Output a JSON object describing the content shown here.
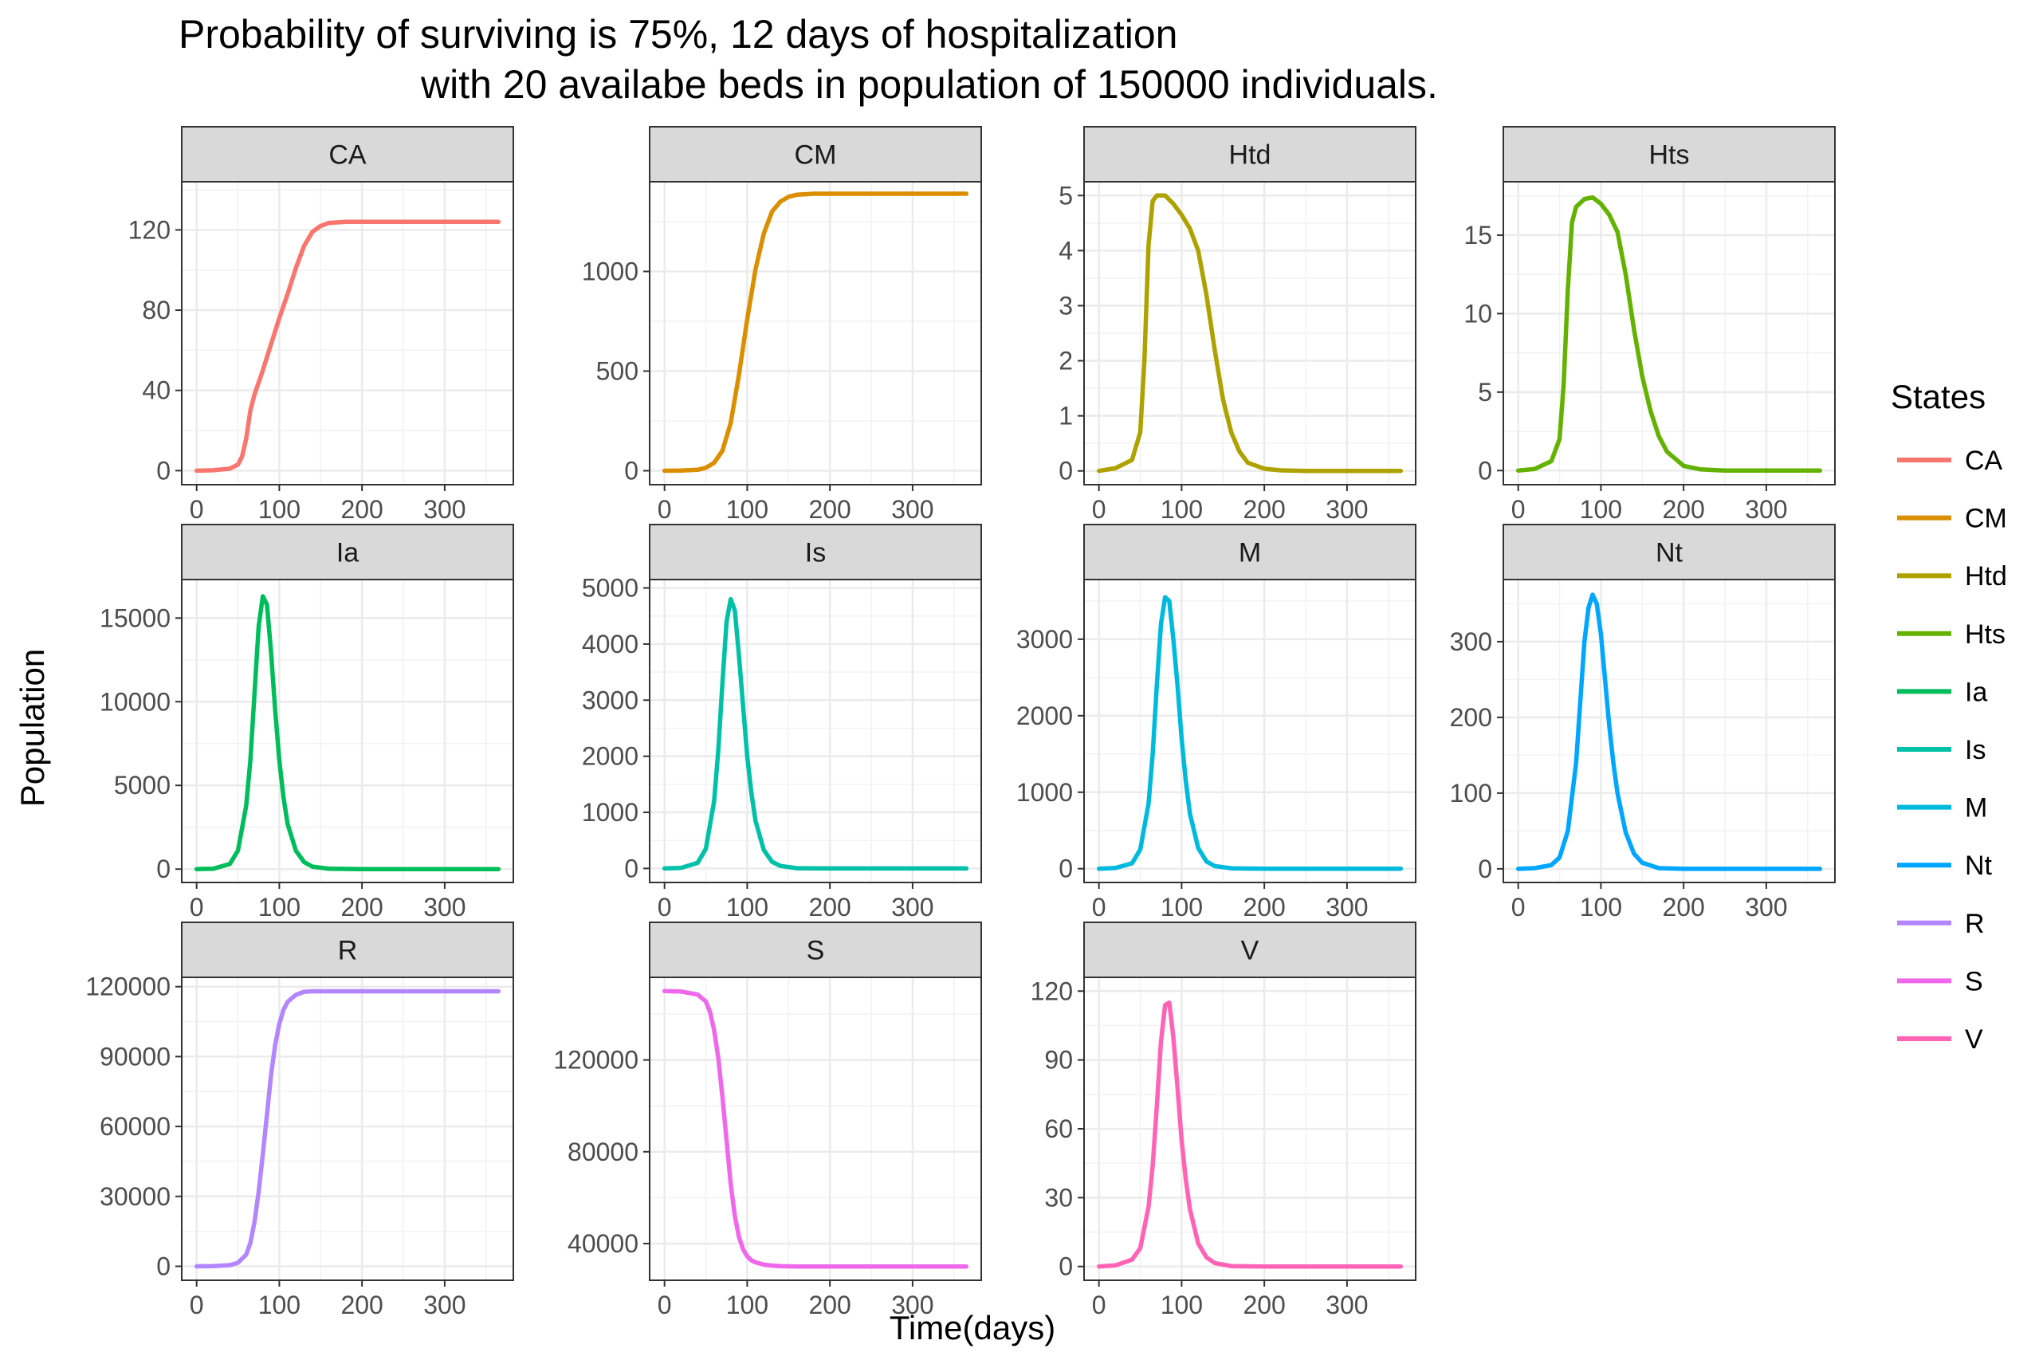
{
  "chart_data": {
    "type": "line",
    "title": [
      "Probability of surviving is 75%, 12 days of hospitalization",
      "with 20 availabe beds in population of 150000 individuals."
    ],
    "xlabel": "Time(days)",
    "ylabel": "Population",
    "grid": true,
    "legend": {
      "title": "States",
      "position": "right",
      "items": [
        {
          "label": "CA",
          "color": "#F8766D"
        },
        {
          "label": "CM",
          "color": "#DB8E00"
        },
        {
          "label": "Htd",
          "color": "#AEA200"
        },
        {
          "label": "Hts",
          "color": "#64B200"
        },
        {
          "label": "Ia",
          "color": "#00BD5C"
        },
        {
          "label": "Is",
          "color": "#00C1A7"
        },
        {
          "label": "M",
          "color": "#00BADE"
        },
        {
          "label": "Nt",
          "color": "#00A6FF"
        },
        {
          "label": "R",
          "color": "#B385FF"
        },
        {
          "label": "S",
          "color": "#EF67EB"
        },
        {
          "label": "V",
          "color": "#FF63B6"
        }
      ]
    },
    "panels": [
      {
        "name": "CA",
        "color": "#F8766D",
        "xlim": [
          -18,
          383
        ],
        "xticks": [
          0,
          100,
          200,
          300
        ],
        "ylim": [
          -7,
          144
        ],
        "yticks": [
          0,
          40,
          80,
          120
        ],
        "ytick_labels": [
          "0",
          "40",
          "80",
          "120"
        ],
        "x": [
          0,
          20,
          40,
          50,
          55,
          60,
          65,
          70,
          80,
          90,
          100,
          110,
          120,
          130,
          140,
          150,
          160,
          180,
          200,
          250,
          300,
          365
        ],
        "y": [
          0,
          0.2,
          1,
          3,
          7,
          16,
          30,
          38,
          50,
          63,
          76,
          88,
          101,
          112,
          119,
          122,
          123.5,
          124,
          124,
          124,
          124,
          124
        ]
      },
      {
        "name": "CM",
        "color": "#DB8E00",
        "xlim": [
          -18,
          383
        ],
        "xticks": [
          0,
          100,
          200,
          300
        ],
        "ylim": [
          -70,
          1450
        ],
        "yticks": [
          0,
          500,
          1000
        ],
        "ytick_labels": [
          "0",
          "500",
          "1000"
        ],
        "x": [
          0,
          20,
          40,
          50,
          60,
          70,
          80,
          90,
          100,
          110,
          120,
          130,
          140,
          150,
          160,
          180,
          200,
          250,
          300,
          365
        ],
        "y": [
          0,
          1,
          5,
          15,
          40,
          100,
          240,
          480,
          760,
          1010,
          1190,
          1300,
          1350,
          1375,
          1385,
          1390,
          1390,
          1390,
          1390,
          1390
        ]
      },
      {
        "name": "Htd",
        "color": "#AEA200",
        "xlim": [
          -18,
          383
        ],
        "xticks": [
          0,
          100,
          200,
          300
        ],
        "ylim": [
          -0.25,
          5.25
        ],
        "yticks": [
          0,
          1,
          2,
          3,
          4,
          5
        ],
        "ytick_labels": [
          "0",
          "1",
          "2",
          "3",
          "4",
          "5"
        ],
        "x": [
          0,
          20,
          40,
          50,
          55,
          60,
          65,
          70,
          80,
          90,
          100,
          110,
          120,
          130,
          140,
          150,
          160,
          170,
          180,
          200,
          220,
          250,
          300,
          365
        ],
        "y": [
          0,
          0.05,
          0.2,
          0.7,
          2.0,
          4.1,
          4.9,
          5.0,
          5.0,
          4.85,
          4.65,
          4.4,
          4.0,
          3.2,
          2.2,
          1.3,
          0.7,
          0.35,
          0.15,
          0.04,
          0.01,
          0,
          0,
          0
        ]
      },
      {
        "name": "Hts",
        "color": "#64B200",
        "xlim": [
          -18,
          383
        ],
        "xticks": [
          0,
          100,
          200,
          300
        ],
        "ylim": [
          -0.9,
          18.4
        ],
        "yticks": [
          0,
          5,
          10,
          15
        ],
        "ytick_labels": [
          "0",
          "5",
          "10",
          "15"
        ],
        "x": [
          0,
          20,
          40,
          50,
          55,
          60,
          65,
          70,
          80,
          90,
          100,
          110,
          120,
          130,
          140,
          150,
          160,
          170,
          180,
          200,
          220,
          250,
          300,
          365
        ],
        "y": [
          0,
          0.1,
          0.6,
          2.0,
          5.5,
          11.5,
          15.8,
          16.8,
          17.3,
          17.4,
          17.0,
          16.3,
          15.2,
          12.5,
          9.0,
          6.0,
          3.8,
          2.2,
          1.2,
          0.3,
          0.08,
          0,
          0,
          0
        ]
      },
      {
        "name": "Ia",
        "color": "#00BD5C",
        "xlim": [
          -18,
          383
        ],
        "xticks": [
          0,
          100,
          200,
          300
        ],
        "ylim": [
          -800,
          17300
        ],
        "yticks": [
          0,
          5000,
          10000,
          15000
        ],
        "ytick_labels": [
          "0",
          "5000",
          "10000",
          "15000"
        ],
        "x": [
          0,
          20,
          40,
          50,
          60,
          65,
          70,
          75,
          80,
          85,
          90,
          95,
          100,
          105,
          110,
          120,
          130,
          140,
          160,
          200,
          250,
          300,
          365
        ],
        "y": [
          0,
          20,
          300,
          1100,
          3800,
          6500,
          10500,
          14500,
          16300,
          15800,
          13000,
          9500,
          6500,
          4300,
          2700,
          1100,
          420,
          150,
          20,
          0,
          0,
          0,
          0
        ]
      },
      {
        "name": "Is",
        "color": "#00C1A7",
        "xlim": [
          -18,
          383
        ],
        "xticks": [
          0,
          100,
          200,
          300
        ],
        "ylim": [
          -250,
          5150
        ],
        "yticks": [
          0,
          1000,
          2000,
          3000,
          4000,
          5000
        ],
        "ytick_labels": [
          "0",
          "1000",
          "2000",
          "3000",
          "4000",
          "5000"
        ],
        "x": [
          0,
          20,
          40,
          50,
          60,
          65,
          70,
          75,
          80,
          85,
          90,
          95,
          100,
          105,
          110,
          120,
          130,
          140,
          160,
          200,
          250,
          300,
          365
        ],
        "y": [
          0,
          10,
          100,
          350,
          1200,
          2100,
          3300,
          4400,
          4800,
          4600,
          3800,
          2900,
          2000,
          1350,
          850,
          330,
          120,
          45,
          5,
          0,
          0,
          0,
          0
        ]
      },
      {
        "name": "M",
        "color": "#00BADE",
        "xlim": [
          -18,
          383
        ],
        "xticks": [
          0,
          100,
          200,
          300
        ],
        "ylim": [
          -180,
          3780
        ],
        "yticks": [
          0,
          1000,
          2000,
          3000
        ],
        "ytick_labels": [
          "0",
          "1000",
          "2000",
          "3000"
        ],
        "x": [
          0,
          20,
          40,
          50,
          60,
          65,
          70,
          75,
          80,
          85,
          90,
          95,
          100,
          105,
          110,
          120,
          130,
          140,
          160,
          200,
          250,
          300,
          365
        ],
        "y": [
          0,
          10,
          70,
          250,
          850,
          1500,
          2400,
          3200,
          3550,
          3500,
          3000,
          2400,
          1700,
          1150,
          720,
          270,
          95,
          35,
          5,
          0,
          0,
          0,
          0
        ]
      },
      {
        "name": "Nt",
        "color": "#00A6FF",
        "xlim": [
          -18,
          383
        ],
        "xticks": [
          0,
          100,
          200,
          300
        ],
        "ylim": [
          -18,
          382
        ],
        "yticks": [
          0,
          100,
          200,
          300
        ],
        "ytick_labels": [
          "0",
          "100",
          "200",
          "300"
        ],
        "x": [
          0,
          20,
          40,
          50,
          60,
          70,
          75,
          80,
          85,
          90,
          95,
          100,
          105,
          110,
          115,
          120,
          130,
          140,
          150,
          170,
          200,
          250,
          300,
          365
        ],
        "y": [
          0,
          1,
          5,
          15,
          50,
          140,
          220,
          300,
          345,
          362,
          350,
          310,
          250,
          190,
          140,
          100,
          48,
          20,
          8,
          1,
          0,
          0,
          0,
          0
        ]
      },
      {
        "name": "R",
        "color": "#B385FF",
        "xlim": [
          -18,
          383
        ],
        "xticks": [
          0,
          100,
          200,
          300
        ],
        "ylim": [
          -6000,
          124000
        ],
        "yticks": [
          0,
          30000,
          60000,
          90000,
          120000
        ],
        "ytick_labels": [
          "0",
          "30000",
          "60000",
          "90000",
          "120000"
        ],
        "x": [
          0,
          20,
          40,
          50,
          60,
          65,
          70,
          75,
          80,
          85,
          90,
          95,
          100,
          105,
          110,
          120,
          130,
          140,
          160,
          200,
          250,
          300,
          365
        ],
        "y": [
          0,
          50,
          500,
          1500,
          5000,
          10000,
          19000,
          32000,
          48000,
          65000,
          82000,
          95000,
          104000,
          110000,
          113500,
          116500,
          117800,
          118000,
          118000,
          118000,
          118000,
          118000,
          118000
        ]
      },
      {
        "name": "S",
        "color": "#EF67EB",
        "xlim": [
          -18,
          383
        ],
        "xticks": [
          0,
          100,
          200,
          300
        ],
        "ylim": [
          24000,
          156000
        ],
        "yticks": [
          40000,
          80000,
          120000
        ],
        "ytick_labels": [
          "40000",
          "80000",
          "120000"
        ],
        "x": [
          0,
          20,
          40,
          50,
          55,
          60,
          65,
          70,
          75,
          80,
          85,
          90,
          95,
          100,
          105,
          110,
          120,
          130,
          140,
          160,
          200,
          250,
          300,
          365
        ],
        "y": [
          150000,
          149800,
          148500,
          145500,
          141000,
          133000,
          121000,
          104000,
          85000,
          66000,
          52000,
          43000,
          37500,
          34500,
          32700,
          31800,
          30800,
          30400,
          30200,
          30000,
          30000,
          30000,
          30000,
          30000
        ]
      },
      {
        "name": "V",
        "color": "#FF63B6",
        "xlim": [
          -18,
          383
        ],
        "xticks": [
          0,
          100,
          200,
          300
        ],
        "ylim": [
          -6,
          126
        ],
        "yticks": [
          0,
          30,
          60,
          90,
          120
        ],
        "ytick_labels": [
          "0",
          "30",
          "60",
          "90",
          "120"
        ],
        "x": [
          0,
          20,
          40,
          50,
          60,
          65,
          70,
          75,
          80,
          85,
          90,
          95,
          100,
          105,
          110,
          120,
          130,
          140,
          160,
          200,
          250,
          300,
          365
        ],
        "y": [
          0,
          0.5,
          3,
          8,
          26,
          44,
          70,
          98,
          114,
          115,
          100,
          78,
          55,
          38,
          25,
          10,
          4,
          1.5,
          0.2,
          0,
          0,
          0,
          0
        ]
      }
    ]
  }
}
